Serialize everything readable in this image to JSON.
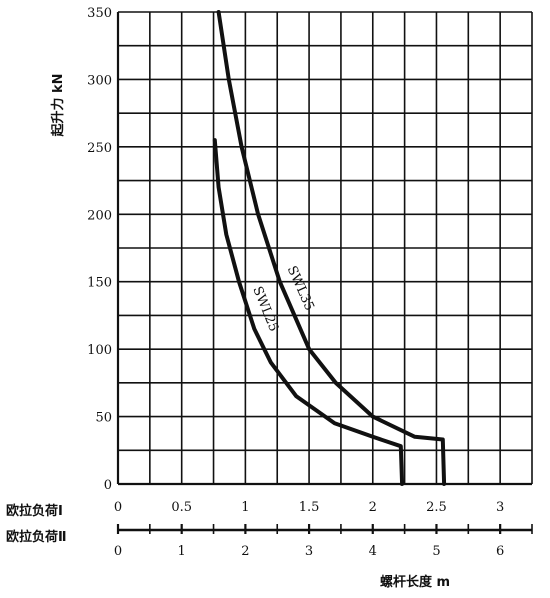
{
  "chart_data": {
    "type": "line",
    "title": "",
    "ylabel": "起升力 kN",
    "xlabel": "螺杆长度 m",
    "ylim": [
      0,
      350
    ],
    "yticks": [
      "0",
      "50",
      "100",
      "150",
      "200",
      "250",
      "300",
      "350"
    ],
    "grid": true,
    "scales": [
      {
        "name": "欧拉负荷Ⅰ",
        "xlim": [
          0,
          3.25
        ],
        "tick_values": [
          0,
          0.5,
          1,
          1.5,
          2,
          2.5,
          3
        ],
        "tick_labels": [
          "0",
          "0.5",
          "1",
          "1.5",
          "2",
          "2.5",
          "3"
        ]
      },
      {
        "name": "欧拉负荷Ⅱ",
        "xlim": [
          0,
          6.5
        ],
        "tick_values": [
          0,
          1,
          2,
          3,
          4,
          5,
          6
        ],
        "tick_labels": [
          "0",
          "1",
          "2",
          "3",
          "4",
          "5",
          "6"
        ]
      }
    ],
    "series": [
      {
        "name": "SWL35",
        "points": [
          [
            0.79,
            350
          ],
          [
            0.87,
            300
          ],
          [
            0.97,
            250
          ],
          [
            1.1,
            200
          ],
          [
            1.27,
            150
          ],
          [
            1.5,
            100
          ],
          [
            1.71,
            75
          ],
          [
            2.0,
            50
          ],
          [
            2.33,
            35
          ],
          [
            2.55,
            33
          ],
          [
            2.56,
            0
          ]
        ]
      },
      {
        "name": "SWL25",
        "points": [
          [
            0.76,
            255
          ],
          [
            0.79,
            220
          ],
          [
            0.85,
            185
          ],
          [
            0.95,
            150
          ],
          [
            1.07,
            115
          ],
          [
            1.2,
            90
          ],
          [
            1.4,
            65
          ],
          [
            1.7,
            45
          ],
          [
            2.0,
            35
          ],
          [
            2.22,
            28
          ],
          [
            2.23,
            0
          ]
        ]
      }
    ]
  }
}
